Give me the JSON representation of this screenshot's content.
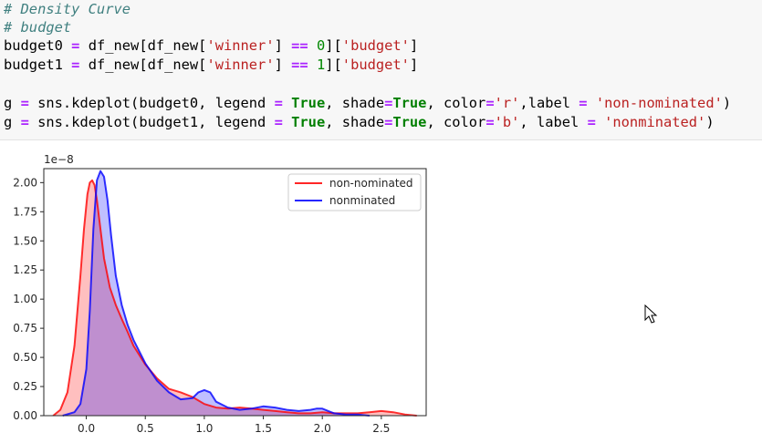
{
  "code": {
    "comment1": "# Density Curve",
    "comment2": "# budget",
    "line3": {
      "var": "budget0",
      "eq": "=",
      "expr1": "df_new[df_new[",
      "key": "'winner'",
      "expr2": "] ",
      "cmp": "==",
      "num": "0",
      "expr3": "][",
      "col": "'budget'",
      "expr4": "]"
    },
    "line4": {
      "var": "budget1",
      "eq": "=",
      "expr1": "df_new[df_new[",
      "key": "'winner'",
      "expr2": "] ",
      "cmp": "==",
      "num": "1",
      "expr3": "][",
      "col": "'budget'",
      "expr4": "]"
    },
    "line6": {
      "var": "g",
      "eq": "=",
      "call": "sns.kdeplot(budget0, legend ",
      "eq2": "=",
      "true1": "True",
      "shade": ", shade",
      "eq3": "=",
      "true2": "True",
      "color": ", color",
      "eq4": "=",
      "cval": "'r'",
      "label": ",label ",
      "eq5": "=",
      "lval": "'non-nominated'",
      "close": ")"
    },
    "line7": {
      "var": "g",
      "eq": "=",
      "call": "sns.kdeplot(budget1, legend ",
      "eq2": "=",
      "true1": "True",
      "shade": ", shade",
      "eq3": "=",
      "true2": "True",
      "color": ", color",
      "eq4": "=",
      "cval": "'b'",
      "label": ", label ",
      "eq5": "=",
      "lval": "'nonminated'",
      "close": ")"
    }
  },
  "chart_data": {
    "type": "area",
    "scale_label": "1e−8",
    "xlim": [
      -0.36,
      2.88
    ],
    "ylim": [
      0,
      2.12
    ],
    "x_ticks": [
      "0.0",
      "0.5",
      "1.0",
      "1.5",
      "2.0",
      "2.5"
    ],
    "x_tick_values": [
      0.0,
      0.5,
      1.0,
      1.5,
      2.0,
      2.5
    ],
    "y_ticks": [
      "0.00",
      "0.25",
      "0.50",
      "0.75",
      "1.00",
      "1.25",
      "1.50",
      "1.75",
      "2.00"
    ],
    "y_tick_values": [
      0.0,
      0.25,
      0.5,
      0.75,
      1.0,
      1.25,
      1.5,
      1.75,
      2.0
    ],
    "legend_position": "top-right",
    "grid": false,
    "series": [
      {
        "name": "non-nominated",
        "color": "#ff0000",
        "x": [
          -0.28,
          -0.22,
          -0.16,
          -0.1,
          -0.05,
          -0.02,
          0.01,
          0.03,
          0.05,
          0.07,
          0.09,
          0.12,
          0.15,
          0.2,
          0.25,
          0.3,
          0.35,
          0.4,
          0.5,
          0.6,
          0.7,
          0.8,
          0.9,
          1.0,
          1.1,
          1.2,
          1.3,
          1.4,
          1.5,
          1.6,
          1.7,
          1.8,
          1.9,
          2.0,
          2.1,
          2.2,
          2.3,
          2.4,
          2.5,
          2.6,
          2.7,
          2.8
        ],
        "y": [
          0.0,
          0.05,
          0.2,
          0.6,
          1.2,
          1.6,
          1.9,
          2.0,
          2.02,
          1.98,
          1.85,
          1.6,
          1.35,
          1.1,
          0.95,
          0.83,
          0.72,
          0.6,
          0.44,
          0.32,
          0.23,
          0.2,
          0.16,
          0.1,
          0.07,
          0.06,
          0.07,
          0.06,
          0.05,
          0.04,
          0.03,
          0.02,
          0.02,
          0.03,
          0.02,
          0.02,
          0.02,
          0.03,
          0.04,
          0.03,
          0.01,
          0.0
        ]
      },
      {
        "name": "nonminated",
        "color": "#0000ff",
        "x": [
          -0.2,
          -0.1,
          -0.05,
          0.0,
          0.03,
          0.06,
          0.09,
          0.12,
          0.15,
          0.18,
          0.21,
          0.25,
          0.3,
          0.35,
          0.4,
          0.5,
          0.6,
          0.7,
          0.8,
          0.9,
          0.95,
          1.0,
          1.05,
          1.1,
          1.2,
          1.3,
          1.4,
          1.5,
          1.6,
          1.7,
          1.8,
          1.9,
          1.95,
          2.0,
          2.05,
          2.1,
          2.2,
          2.3,
          2.4
        ],
        "y": [
          0.0,
          0.03,
          0.1,
          0.4,
          0.9,
          1.6,
          2.02,
          2.1,
          2.05,
          1.85,
          1.55,
          1.2,
          0.95,
          0.78,
          0.65,
          0.45,
          0.3,
          0.2,
          0.14,
          0.15,
          0.2,
          0.22,
          0.2,
          0.12,
          0.07,
          0.05,
          0.06,
          0.08,
          0.07,
          0.05,
          0.04,
          0.05,
          0.06,
          0.06,
          0.04,
          0.02,
          0.01,
          0.01,
          0.0
        ]
      }
    ]
  }
}
